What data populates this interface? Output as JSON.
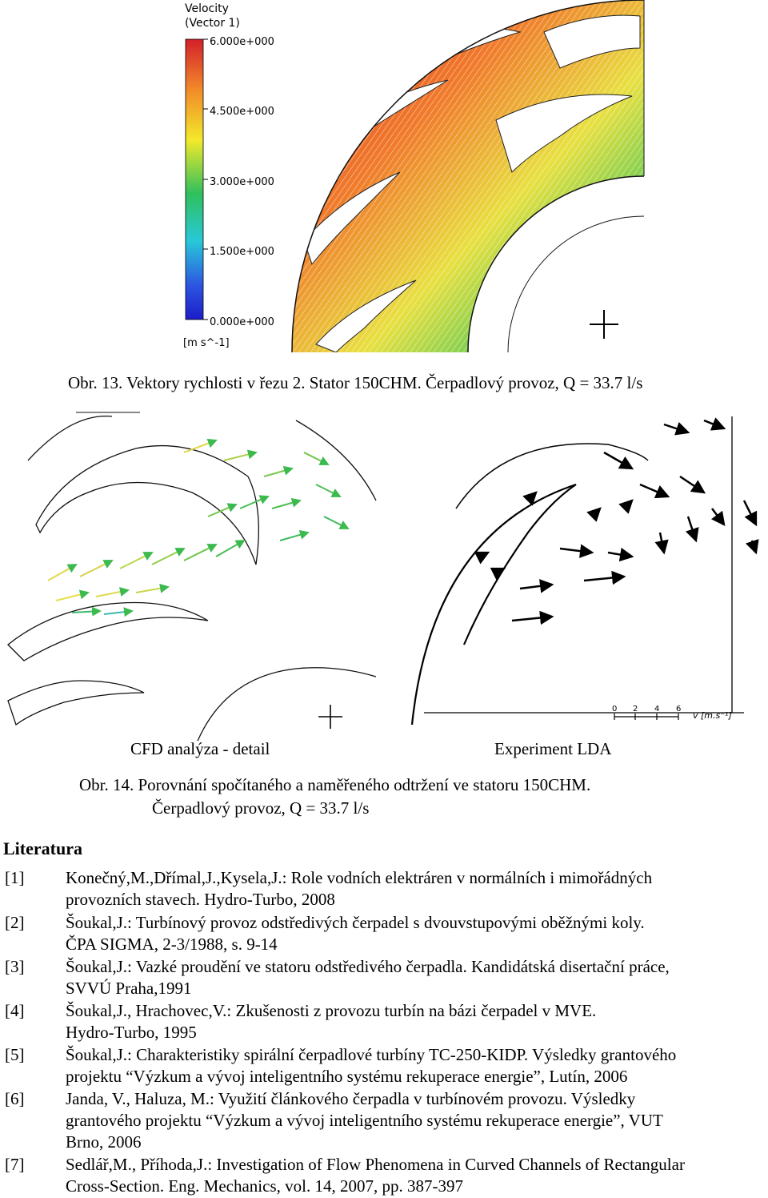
{
  "figure13": {
    "legend": {
      "title_line1": "Velocity",
      "title_line2": "(Vector 1)",
      "ticks": [
        "6.000e+000",
        "4.500e+000",
        "3.000e+000",
        "1.500e+000",
        "0.000e+000"
      ],
      "unit": "[m s^-1]",
      "colors": [
        "#d2202a",
        "#f28a2a",
        "#f3e92b",
        "#30c05c",
        "#28c8d8",
        "#2c55e0",
        "#1c1cc8"
      ]
    },
    "caption": "Obr. 13. Vektory rychlosti v řezu 2. Stator 150CHM. Čerpadlový provoz, Q = 33.7 l/s"
  },
  "figure14": {
    "left_label": "CFD analýza - detail",
    "right_label": "Experiment LDA",
    "scale_ticks": [
      "0",
      "2",
      "4",
      "6"
    ],
    "scale_unit": "v [m.s⁻¹]",
    "caption_line1": "Obr. 14. Porovnání spočítaného a naměřeného odtržení ve statoru 150CHM.",
    "caption_line2": "Čerpadlový provoz, Q = 33.7 l/s"
  },
  "literature": {
    "heading": "Literatura",
    "references": [
      {
        "num": "[1]",
        "lines": [
          "Konečný,M.,Dřímal,J.,Kysela,J.: Role vodních elektráren v normálních i mimořádných",
          "provozních stavech. Hydro-Turbo, 2008"
        ]
      },
      {
        "num": "[2]",
        "lines": [
          "Šoukal,J.: Turbínový provoz odstředivých čerpadel s dvouvstupovými oběžnými koly.",
          "ČPA SIGMA, 2-3/1988, s. 9-14"
        ]
      },
      {
        "num": "[3]",
        "lines": [
          "Šoukal,J.: Vazké proudění ve statoru odstředivého čerpadla. Kandidátská disertační práce,",
          "SVVÚ Praha,1991"
        ]
      },
      {
        "num": "[4]",
        "lines": [
          "Šoukal,J., Hrachovec,V.: Zkušenosti z provozu turbín na bázi čerpadel v MVE.",
          "Hydro-Turbo, 1995"
        ]
      },
      {
        "num": "[5]",
        "lines": [
          "Šoukal,J.: Charakteristiky spirální čerpadlové turbíny TC-250-KIDP. Výsledky grantového",
          "projektu “Výzkum a vývoj inteligentního systému rekuperace energie”, Lutín, 2006"
        ]
      },
      {
        "num": "[6]",
        "lines": [
          "Janda, V., Haluza, M.: Využití článkového čerpadla v turbínovém provozu. Výsledky",
          "grantového projektu “Výzkum a vývoj inteligentního systému rekuperace energie”, VUT",
          "Brno, 2006"
        ]
      },
      {
        "num": "[7]",
        "lines": [
          "Sedlář,M., Příhoda,J.: Investigation of Flow Phenomena in Curved Channels of Rectangular",
          "Cross-Section. Eng. Mechanics, vol. 14, 2007, pp. 387-397"
        ]
      }
    ]
  }
}
